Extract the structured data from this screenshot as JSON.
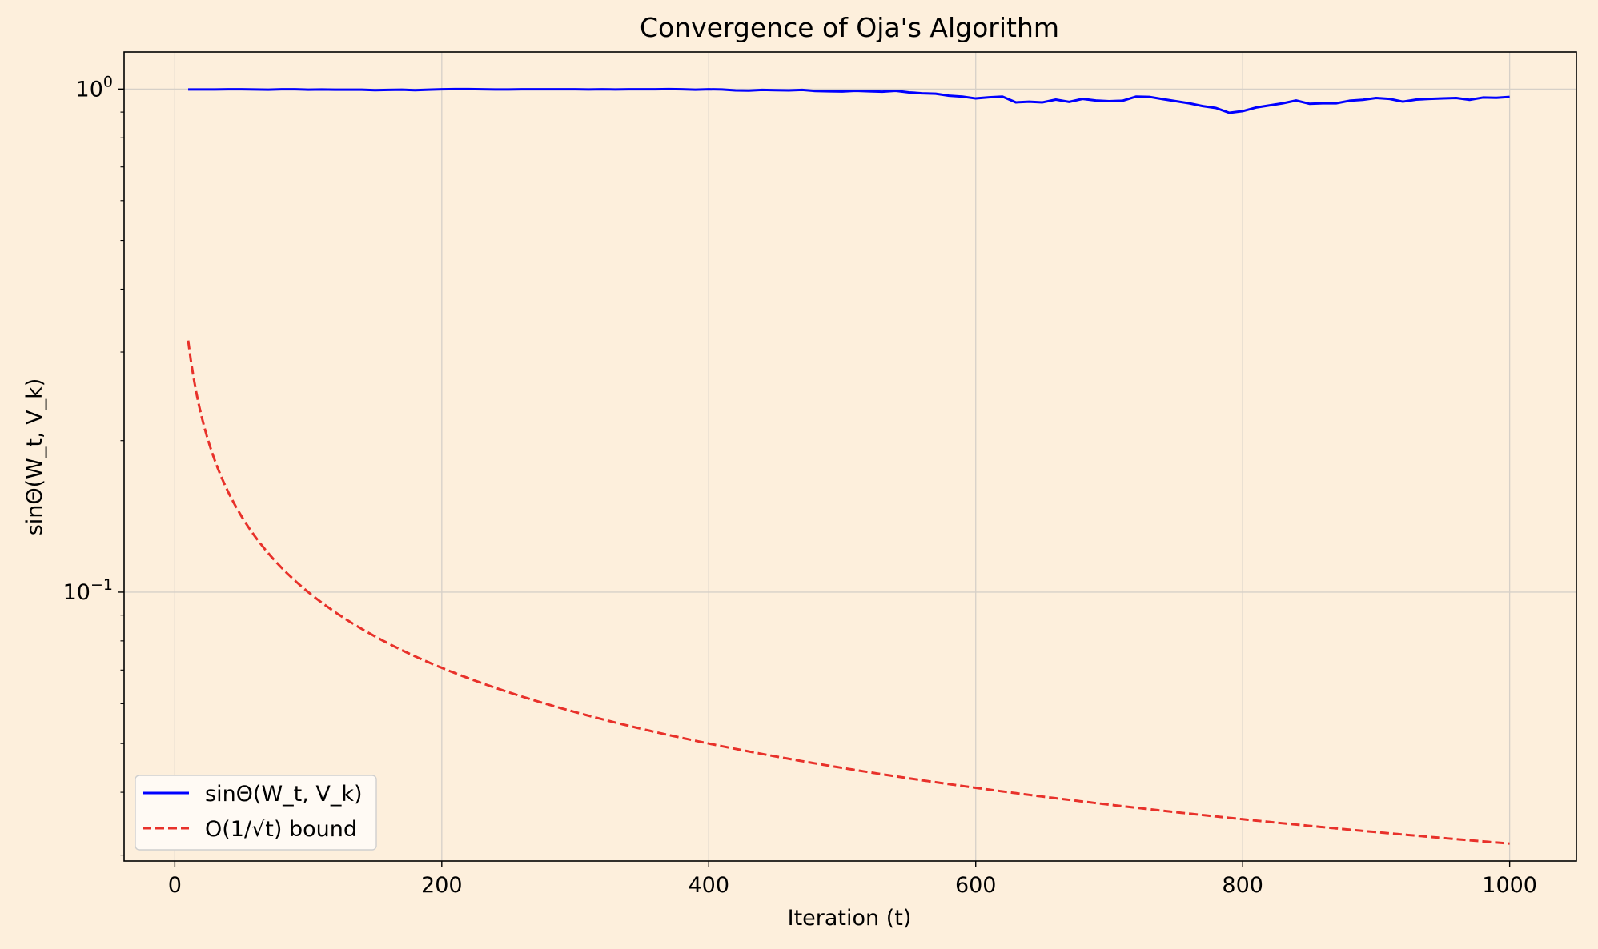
{
  "chart_data": {
    "type": "line",
    "title": "Convergence of Oja's Algorithm",
    "xlabel": "Iteration (t)",
    "ylabel": "sinΘ(W_t, V_k)",
    "xlim": [
      -38,
      1050
    ],
    "ylim": [
      0.0292,
      1.185
    ],
    "yscale": "log",
    "grid": true,
    "legend_position": "lower-left",
    "x_ticks": [
      {
        "value": 0,
        "label": "0"
      },
      {
        "value": 200,
        "label": "200"
      },
      {
        "value": 400,
        "label": "400"
      },
      {
        "value": 600,
        "label": "600"
      },
      {
        "value": 800,
        "label": "800"
      },
      {
        "value": 1000,
        "label": "1000"
      }
    ],
    "y_major_ticks": [
      {
        "value": 1.0,
        "base": "10",
        "exp": "0"
      },
      {
        "value": 0.1,
        "base": "10",
        "exp": "−1"
      }
    ],
    "y_minor_ticks": [
      0.03,
      0.04,
      0.05,
      0.06,
      0.07,
      0.08,
      0.09,
      0.2,
      0.3,
      0.4,
      0.5,
      0.6,
      0.7,
      0.8,
      0.9
    ],
    "series": [
      {
        "name": "sinΘ(W_t, V_k)",
        "color": "#0000ff",
        "style": "solid",
        "x": [
          10,
          20,
          30,
          40,
          50,
          60,
          70,
          80,
          90,
          100,
          110,
          120,
          130,
          140,
          150,
          160,
          170,
          180,
          190,
          200,
          210,
          220,
          230,
          240,
          250,
          260,
          270,
          280,
          290,
          300,
          310,
          320,
          330,
          340,
          350,
          360,
          370,
          380,
          390,
          400,
          410,
          420,
          430,
          440,
          450,
          460,
          470,
          480,
          490,
          500,
          510,
          520,
          530,
          540,
          550,
          560,
          570,
          580,
          590,
          600,
          610,
          620,
          630,
          640,
          650,
          660,
          670,
          680,
          690,
          700,
          710,
          720,
          730,
          740,
          750,
          760,
          770,
          780,
          790,
          800,
          810,
          820,
          830,
          840,
          850,
          860,
          870,
          880,
          890,
          900,
          910,
          920,
          930,
          940,
          950,
          960,
          970,
          980,
          990,
          1000
        ],
        "y": [
          0.998,
          0.998,
          0.998,
          0.999,
          0.999,
          0.998,
          0.997,
          0.999,
          0.999,
          0.997,
          0.998,
          0.997,
          0.997,
          0.997,
          0.995,
          0.996,
          0.997,
          0.995,
          0.997,
          0.999,
          1.0,
          1.0,
          0.999,
          0.998,
          0.998,
          0.999,
          0.999,
          0.999,
          0.999,
          0.999,
          0.998,
          0.999,
          0.998,
          0.999,
          0.999,
          0.999,
          1.0,
          0.999,
          0.997,
          0.999,
          0.998,
          0.994,
          0.993,
          0.996,
          0.995,
          0.994,
          0.996,
          0.991,
          0.99,
          0.989,
          0.992,
          0.99,
          0.988,
          0.992,
          0.985,
          0.981,
          0.979,
          0.97,
          0.966,
          0.958,
          0.963,
          0.966,
          0.941,
          0.944,
          0.941,
          0.953,
          0.943,
          0.956,
          0.949,
          0.946,
          0.948,
          0.966,
          0.965,
          0.955,
          0.946,
          0.937,
          0.925,
          0.917,
          0.897,
          0.904,
          0.919,
          0.928,
          0.937,
          0.949,
          0.935,
          0.937,
          0.937,
          0.948,
          0.952,
          0.96,
          0.956,
          0.944,
          0.953,
          0.956,
          0.958,
          0.96,
          0.952,
          0.962,
          0.961,
          0.965
        ]
      },
      {
        "name": "O(1/√t) bound",
        "color": "#e8312a",
        "style": "dashed",
        "formula_note": "",
        "x_range": [
          10,
          1000
        ],
        "coefficient": 1.0
      }
    ]
  }
}
